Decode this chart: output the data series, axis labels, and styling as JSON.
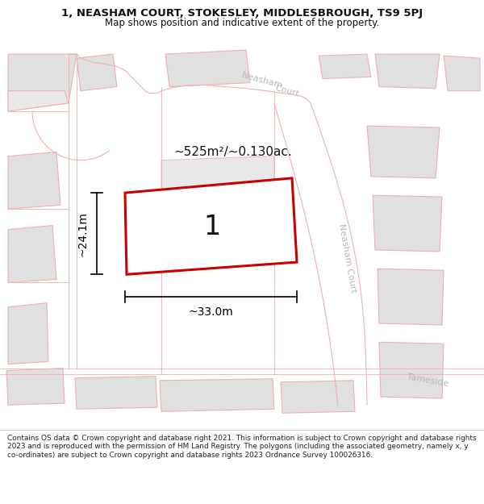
{
  "title_line1": "1, NEASHAM COURT, STOKESLEY, MIDDLESBROUGH, TS9 5PJ",
  "title_line2": "Map shows position and indicative extent of the property.",
  "footer_text": "Contains OS data © Crown copyright and database right 2021. This information is subject to Crown copyright and database rights 2023 and is reproduced with the permission of HM Land Registry. The polygons (including the associated geometry, namely x, y co-ordinates) are subject to Crown copyright and database rights 2023 Ordnance Survey 100026316.",
  "area_text": "~525m²/~0.130ac.",
  "label_text": "1",
  "dim_width": "~33.0m",
  "dim_height": "~24.1m",
  "map_bg": "#ffffff",
  "bld_fill": "#e8e8e8",
  "bld_edge": "#f0b0b0",
  "road_fill": "#ffffff",
  "road_edge": "#e0a0a0",
  "highlight_edge": "#cc0000",
  "highlight_fill": "#ffffff",
  "road_label_color": "#b0b0b0",
  "title_bg": "#ffffff",
  "footer_bg": "#ffffff",
  "dim_color": "#000000",
  "area_color": "#111111",
  "label_color": "#111111"
}
